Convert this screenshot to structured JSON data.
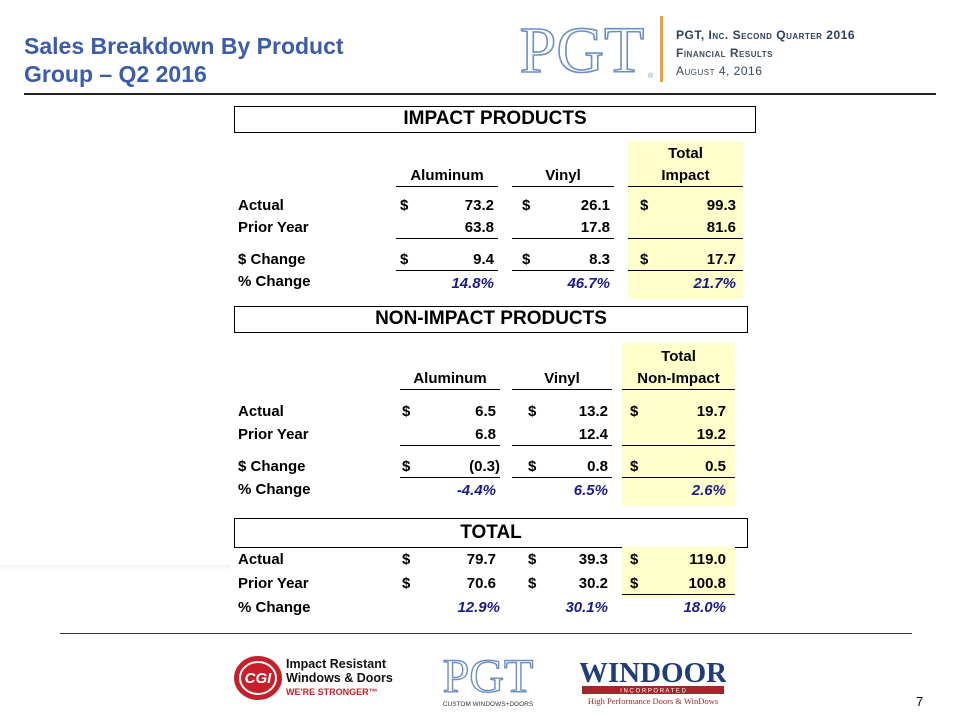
{
  "header": {
    "title_line1": "Sales Breakdown By Product",
    "title_line2": "Group – Q2 2016",
    "company_line1": "PGT, Inc. Second Quarter 2016",
    "company_line2": "Financial Results",
    "company_line3": "August 4, 2016",
    "logo_text": "PGT",
    "colors": {
      "title": "#3b5ca8",
      "accent_bar": "#f0a030",
      "highlight": "#ffffcc",
      "pct": "#1a1a8c"
    }
  },
  "impact": {
    "section_title": "IMPACT PRODUCTS",
    "col_aluminum": "Aluminum",
    "col_vinyl": "Vinyl",
    "col_total_line1": "Total",
    "col_total_line2": "Impact",
    "rows": {
      "actual": {
        "label": "Actual",
        "al_sym": "$",
        "al": "73.2",
        "vi_sym": "$",
        "vi": "26.1",
        "to_sym": "$",
        "to": "99.3"
      },
      "prior": {
        "label": "Prior Year",
        "al": "63.8",
        "vi": "17.8",
        "to": "81.6"
      },
      "change": {
        "label": "$ Change",
        "al_sym": "$",
        "al": "9.4",
        "vi_sym": "$",
        "vi": "8.3",
        "to_sym": "$",
        "to": "17.7"
      },
      "pct": {
        "label": "% Change",
        "al": "14.8%",
        "vi": "46.7%",
        "to": "21.7%"
      }
    }
  },
  "nonimpact": {
    "section_title": "NON-IMPACT PRODUCTS",
    "col_aluminum": "Aluminum",
    "col_vinyl": "Vinyl",
    "col_total_line1": "Total",
    "col_total_line2": "Non-Impact",
    "rows": {
      "actual": {
        "label": "Actual",
        "al_sym": "$",
        "al": "6.5",
        "vi_sym": "$",
        "vi": "13.2",
        "to_sym": "$",
        "to": "19.7"
      },
      "prior": {
        "label": "Prior Year",
        "al": "6.8",
        "vi": "12.4",
        "to": "19.2"
      },
      "change": {
        "label": "$ Change",
        "al_sym": "$",
        "al": "(0.3)",
        "vi_sym": "$",
        "vi": "0.8",
        "to_sym": "$",
        "to": "0.5"
      },
      "pct": {
        "label": "% Change",
        "al": "-4.4%",
        "vi": "6.5%",
        "to": "2.6%"
      }
    }
  },
  "total": {
    "section_title": "TOTAL",
    "rows": {
      "actual": {
        "label": "Actual",
        "al_sym": "$",
        "al": "79.7",
        "vi_sym": "$",
        "vi": "39.3",
        "to_sym": "$",
        "to": "119.0"
      },
      "prior": {
        "label": "Prior Year",
        "al_sym": "$",
        "al": "70.6",
        "vi_sym": "$",
        "vi": "30.2",
        "to_sym": "$",
        "to": "100.8"
      },
      "pct": {
        "label": "% Change",
        "al": "12.9%",
        "vi": "30.1%",
        "to": "18.0%"
      }
    }
  },
  "footer": {
    "cgi_line1": "Impact Resistant",
    "cgi_line2": "Windows & Doors",
    "cgi_line3": "WE'RE STRONGER™",
    "cgi_badge": "CGI",
    "pgt_logo": "PGT",
    "pgt_tagline": "CUSTOM WINDOWS+DOORS",
    "windoor_name": "WINDOOR",
    "windoor_inc": "I N C O R P O R A T E D",
    "windoor_tagline": "High Performance Doors & WinDows",
    "page_number": "7"
  }
}
